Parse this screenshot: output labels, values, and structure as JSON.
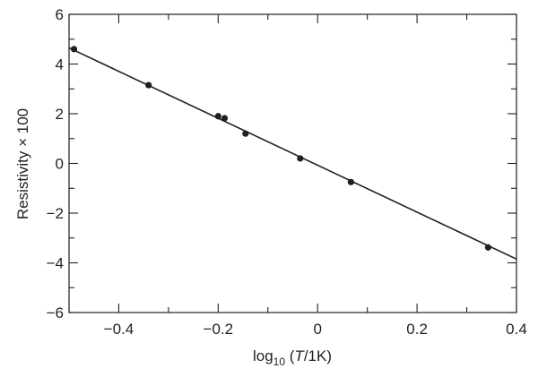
{
  "chart_data": {
    "type": "scatter",
    "xlabel": {
      "prefix": "log",
      "subscript": "10",
      "open": " (",
      "var": "T",
      "rest": "/1K)"
    },
    "ylabel": "Resistivity × 100",
    "xlim": [
      -0.5,
      0.4
    ],
    "ylim": [
      -6,
      6
    ],
    "xticks": [
      -0.4,
      -0.2,
      0,
      0.2,
      0.4
    ],
    "xtick_labels": [
      "−0.4",
      "−0.2",
      "0",
      "0.2",
      "0.4"
    ],
    "yticks": [
      -6,
      -4,
      -2,
      0,
      2,
      4,
      6
    ],
    "ytick_labels": [
      "−6",
      "−4",
      "−2",
      "0",
      "2",
      "4",
      "6"
    ],
    "x_minor_step": 0.1,
    "y_minor_step": 1,
    "grid": false,
    "legend": "none",
    "series": [
      {
        "points": [
          [
            -0.49,
            4.6
          ],
          [
            -0.34,
            3.15
          ],
          [
            -0.2,
            1.9
          ],
          [
            -0.187,
            1.82
          ],
          [
            -0.145,
            1.2
          ],
          [
            -0.035,
            0.2
          ],
          [
            0.067,
            -0.75
          ],
          [
            0.343,
            -3.38
          ]
        ]
      }
    ],
    "fit_line": {
      "x": [
        -0.5,
        0.4
      ],
      "y": [
        4.65,
        -3.85
      ]
    },
    "color": "#231f20"
  }
}
